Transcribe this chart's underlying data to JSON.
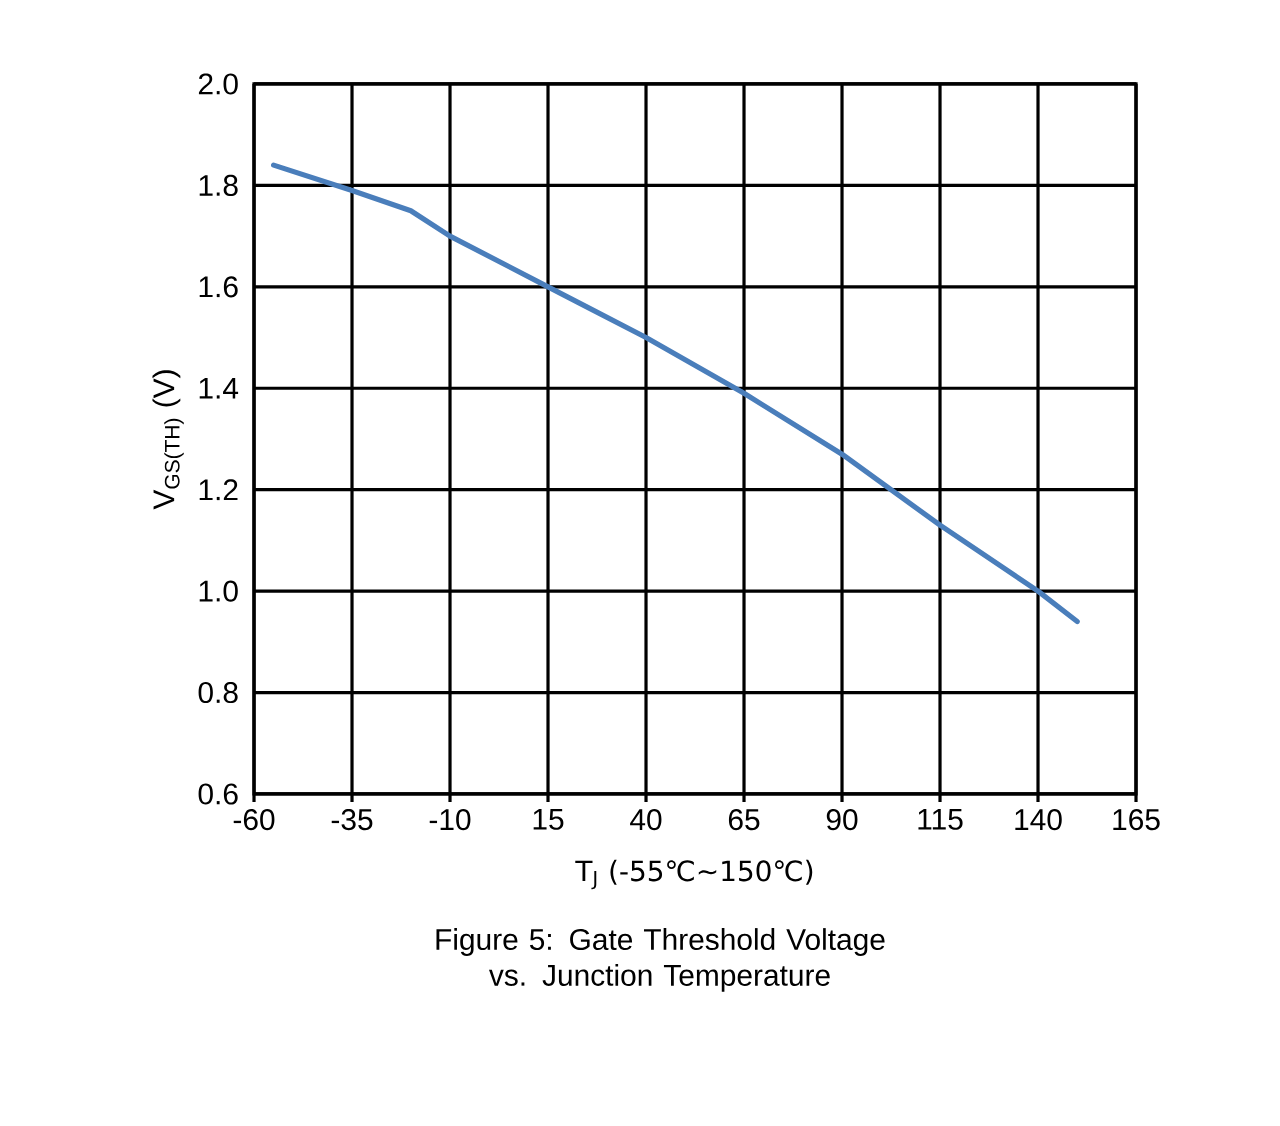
{
  "chart_data": {
    "type": "line",
    "title": "Figure 5: Gate Threshold Voltage vs. Junction Temperature",
    "xlabel": "T$_{J}$ (-55℃~150℃)",
    "ylabel": "V$_{GS(TH)}$ (V)",
    "x": [
      -55,
      -35,
      -20,
      -10,
      15,
      25,
      40,
      65,
      90,
      115,
      140,
      150
    ],
    "series": [
      {
        "color": "#4a7ebb",
        "values": [
          1.84,
          1.79,
          1.75,
          1.7,
          1.6,
          1.56,
          1.5,
          1.39,
          1.27,
          1.13,
          1.0,
          0.94
        ]
      }
    ],
    "xlim": [
      -60,
      165
    ],
    "xticks": [
      -60,
      -35,
      -10,
      15,
      40,
      65,
      90,
      115,
      140,
      165
    ],
    "ylim": [
      0.6,
      2.0
    ],
    "yticks": [
      0.6,
      {
        "value": 0.8,
        "label": "0.8"
      },
      {
        "value": 1.0,
        "label": "1.0"
      },
      1.2,
      1.4,
      1.6,
      1.8,
      {
        "value": 2.0,
        "label": "2.0"
      }
    ],
    "grid": true,
    "marker": "none",
    "line_style": "solid"
  }
}
